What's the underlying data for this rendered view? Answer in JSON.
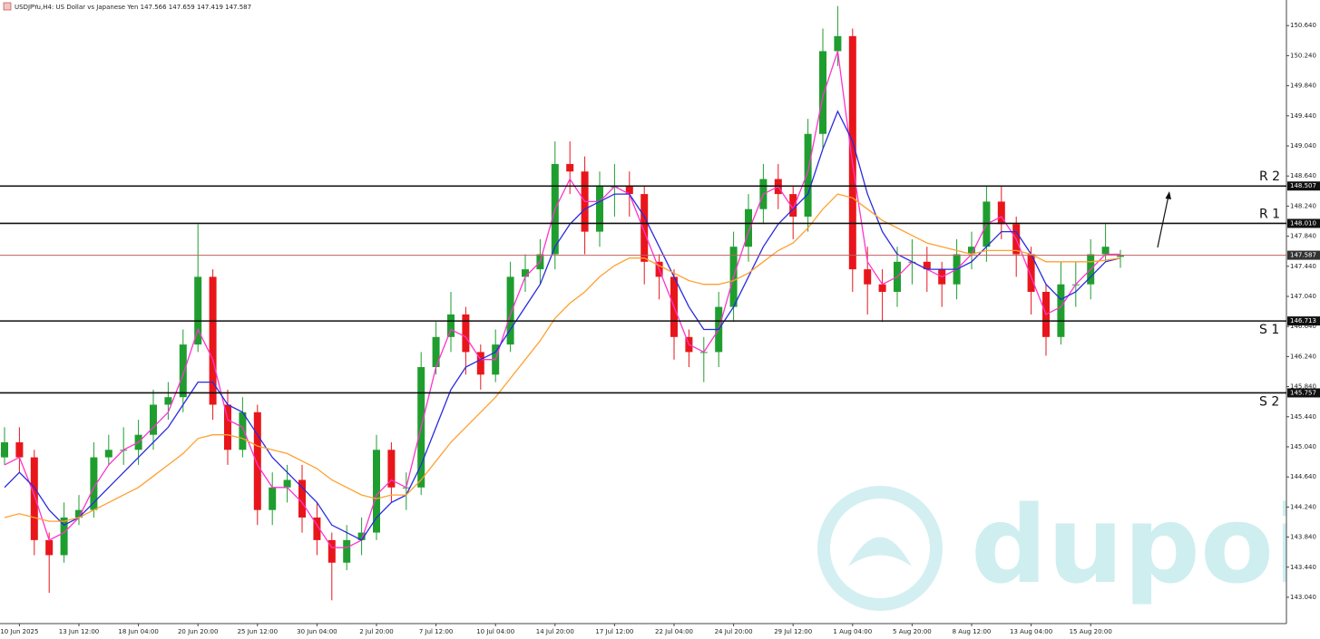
{
  "chart_data": {
    "type": "candlestick",
    "title": "USDJPYu,H4: US Dollar vs Japanese Yen 147.566 147.659 147.419 147.587",
    "watermark": "dupoin",
    "up_color": "#1f9e2f",
    "down_color": "#e8161b",
    "categories": [
      null,
      "10 Jun 2025",
      null,
      null,
      null,
      "13 Jun 12:00",
      null,
      null,
      null,
      "18 Jun 04:00",
      null,
      null,
      null,
      "20 Jun 20:00",
      null,
      null,
      null,
      "25 Jun 12:00",
      null,
      null,
      null,
      "30 Jun 04:00",
      null,
      null,
      null,
      "2 Jul 20:00",
      null,
      null,
      null,
      "7 Jul 12:00",
      null,
      null,
      null,
      "10 Jul 04:00",
      null,
      null,
      null,
      "14 Jul 20:00",
      null,
      null,
      null,
      "17 Jul 12:00",
      null,
      null,
      null,
      "22 Jul 04:00",
      null,
      null,
      null,
      "24 Jul 20:00",
      null,
      null,
      null,
      "29 Jul 12:00",
      null,
      null,
      null,
      "1 Aug 04:00",
      null,
      null,
      null,
      "5 Aug 20:00",
      null,
      null,
      null,
      "8 Aug 12:00",
      null,
      null,
      null,
      "13 Aug 04:00",
      null,
      null,
      null,
      "15 Aug 20:00",
      null,
      null
    ],
    "open": [
      144.9,
      145.1,
      144.9,
      143.8,
      143.6,
      144.1,
      144.2,
      144.9,
      145.0,
      145.0,
      145.2,
      145.6,
      145.7,
      146.4,
      147.3,
      145.6,
      145.0,
      145.5,
      144.2,
      144.5,
      144.6,
      144.1,
      143.8,
      143.5,
      143.8,
      143.9,
      145.0,
      144.5,
      144.5,
      146.1,
      146.5,
      146.8,
      146.3,
      146.0,
      146.4,
      147.3,
      147.4,
      147.6,
      148.8,
      148.7,
      147.9,
      148.5,
      148.5,
      148.4,
      147.5,
      147.3,
      146.5,
      146.3,
      146.3,
      146.9,
      147.7,
      148.2,
      148.6,
      148.4,
      148.1,
      149.2,
      150.3,
      150.5,
      147.4,
      147.2,
      147.1,
      147.5,
      147.5,
      147.4,
      147.2,
      147.6,
      147.7,
      148.3,
      148.0,
      147.6,
      147.1,
      146.5,
      147.2,
      147.2,
      147.6,
      147.566
    ],
    "high": [
      145.3,
      145.3,
      145.0,
      143.9,
      144.3,
      144.4,
      145.1,
      145.2,
      145.3,
      145.4,
      145.8,
      145.9,
      146.6,
      148.0,
      147.4,
      145.8,
      145.7,
      145.6,
      144.7,
      144.8,
      144.8,
      144.3,
      143.9,
      144.0,
      144.1,
      145.2,
      145.1,
      144.7,
      146.3,
      146.7,
      147.1,
      146.9,
      146.4,
      146.6,
      147.5,
      147.6,
      147.8,
      149.1,
      149.1,
      148.9,
      148.7,
      148.8,
      148.7,
      148.5,
      147.6,
      147.4,
      146.6,
      146.5,
      147.1,
      147.9,
      148.4,
      148.8,
      148.8,
      148.5,
      149.4,
      150.6,
      150.9,
      150.6,
      147.7,
      147.4,
      147.7,
      147.8,
      147.7,
      147.5,
      147.8,
      147.9,
      148.5,
      148.5,
      148.1,
      147.7,
      147.2,
      147.5,
      147.5,
      147.8,
      148.0,
      147.659
    ],
    "low": [
      144.8,
      144.7,
      143.6,
      143.1,
      143.5,
      144.0,
      144.1,
      144.8,
      144.8,
      144.8,
      145.0,
      145.4,
      145.5,
      146.3,
      145.4,
      144.8,
      144.9,
      144.0,
      144.0,
      144.3,
      143.9,
      143.6,
      143.0,
      143.4,
      143.6,
      143.8,
      144.3,
      144.2,
      144.4,
      146.0,
      146.3,
      146.0,
      145.8,
      145.9,
      146.3,
      147.1,
      147.2,
      147.4,
      148.4,
      147.6,
      147.7,
      148.1,
      148.1,
      147.2,
      147.0,
      146.2,
      146.1,
      145.9,
      146.1,
      146.7,
      147.5,
      148.0,
      148.2,
      147.8,
      147.9,
      149.0,
      150.1,
      147.1,
      146.8,
      146.7,
      146.9,
      147.2,
      147.1,
      146.9,
      147.0,
      147.4,
      147.5,
      147.8,
      147.3,
      146.8,
      146.25,
      146.4,
      146.9,
      147.0,
      147.5,
      147.419
    ],
    "close": [
      145.1,
      144.9,
      143.8,
      143.6,
      144.1,
      144.2,
      144.9,
      145.0,
      145.0,
      145.2,
      145.6,
      145.7,
      146.4,
      147.3,
      145.6,
      145.0,
      145.5,
      144.2,
      144.5,
      144.6,
      144.1,
      143.8,
      143.5,
      143.8,
      143.9,
      145.0,
      144.5,
      144.5,
      146.1,
      146.5,
      146.8,
      146.3,
      146.0,
      146.4,
      147.3,
      147.4,
      147.6,
      148.8,
      148.7,
      147.9,
      148.5,
      148.5,
      148.4,
      147.5,
      147.3,
      146.5,
      146.3,
      146.3,
      146.9,
      147.7,
      148.2,
      148.6,
      148.4,
      148.1,
      149.2,
      150.3,
      150.5,
      147.4,
      147.2,
      147.1,
      147.5,
      147.5,
      147.4,
      147.2,
      147.6,
      147.7,
      148.3,
      148.0,
      147.6,
      147.1,
      146.5,
      147.2,
      147.2,
      147.6,
      147.7,
      147.587
    ],
    "moving_averages": [
      {
        "color": "#ff33cc",
        "values": [
          144.8,
          144.9,
          144.4,
          143.8,
          143.9,
          144.1,
          144.5,
          144.8,
          145.0,
          145.1,
          145.3,
          145.5,
          146.0,
          146.6,
          146.2,
          145.4,
          145.3,
          144.8,
          144.5,
          144.5,
          144.3,
          144.0,
          143.7,
          143.7,
          143.8,
          144.4,
          144.6,
          144.5,
          145.3,
          146.1,
          146.6,
          146.5,
          146.2,
          146.2,
          146.8,
          147.3,
          147.5,
          148.2,
          148.6,
          148.3,
          148.3,
          148.5,
          148.4,
          147.9,
          147.4,
          146.9,
          146.4,
          146.3,
          146.6,
          147.3,
          147.9,
          148.4,
          148.5,
          148.2,
          148.7,
          149.7,
          150.3,
          148.8,
          147.5,
          147.2,
          147.3,
          147.5,
          147.4,
          147.3,
          147.4,
          147.6,
          148.0,
          148.1,
          147.8,
          147.3,
          146.8,
          146.9,
          147.2,
          147.4,
          147.6,
          147.6
        ]
      },
      {
        "color": "#2a2ae0",
        "values": [
          144.5,
          144.7,
          144.5,
          144.2,
          144.0,
          144.1,
          144.3,
          144.5,
          144.7,
          144.9,
          145.1,
          145.3,
          145.6,
          145.9,
          145.9,
          145.6,
          145.5,
          145.2,
          144.9,
          144.7,
          144.5,
          144.3,
          144.0,
          143.9,
          143.8,
          144.1,
          144.3,
          144.4,
          144.8,
          145.3,
          145.8,
          146.1,
          146.2,
          146.3,
          146.6,
          146.9,
          147.2,
          147.7,
          148.0,
          148.2,
          148.3,
          148.4,
          148.4,
          148.1,
          147.7,
          147.3,
          146.9,
          146.6,
          146.6,
          146.9,
          147.3,
          147.7,
          148.0,
          148.2,
          148.4,
          149.0,
          149.5,
          149.1,
          148.4,
          147.9,
          147.6,
          147.5,
          147.4,
          147.4,
          147.4,
          147.5,
          147.7,
          147.9,
          147.9,
          147.6,
          147.2,
          147.0,
          147.1,
          147.3,
          147.5,
          147.55
        ]
      },
      {
        "color": "#ffa030",
        "values": [
          144.1,
          144.15,
          144.1,
          144.05,
          144.05,
          144.1,
          144.2,
          144.3,
          144.4,
          144.5,
          144.65,
          144.8,
          144.95,
          145.15,
          145.2,
          145.2,
          145.15,
          145.05,
          145.0,
          144.95,
          144.85,
          144.75,
          144.6,
          144.5,
          144.4,
          144.35,
          144.4,
          144.4,
          144.6,
          144.85,
          145.1,
          145.3,
          145.5,
          145.7,
          145.95,
          146.2,
          146.45,
          146.75,
          146.95,
          147.1,
          147.3,
          147.45,
          147.55,
          147.55,
          147.45,
          147.35,
          147.25,
          147.2,
          147.2,
          147.25,
          147.35,
          147.5,
          147.65,
          147.75,
          147.95,
          148.2,
          148.4,
          148.35,
          148.2,
          148.05,
          147.95,
          147.85,
          147.75,
          147.7,
          147.65,
          147.6,
          147.65,
          147.65,
          147.65,
          147.6,
          147.5,
          147.5,
          147.5,
          147.5,
          147.52,
          147.55
        ]
      }
    ],
    "levels": [
      {
        "name": "R 2",
        "value": 148.507,
        "label": "148.507"
      },
      {
        "name": "R 1",
        "value": 148.01,
        "label": "148.010"
      },
      {
        "name": "S 1",
        "value": 146.713,
        "label": "146.713"
      },
      {
        "name": "S 2",
        "value": 145.757,
        "label": "145.757"
      }
    ],
    "current_price": {
      "value": 147.587,
      "label": "147.587",
      "color": "#c06060"
    },
    "ylim": [
      142.69,
      150.98
    ],
    "yticks": [
      {
        "value": 150.64,
        "label": "150.640"
      },
      {
        "value": 150.24,
        "label": "150.240"
      },
      {
        "value": 149.84,
        "label": "149.840"
      },
      {
        "value": 149.44,
        "label": "149.440"
      },
      {
        "value": 149.04,
        "label": "149.040"
      },
      {
        "value": 148.64,
        "label": "148.640"
      },
      {
        "value": 148.24,
        "label": "148.240"
      },
      {
        "value": 147.84,
        "label": "147.840"
      },
      {
        "value": 147.44,
        "label": "147.440"
      },
      {
        "value": 147.04,
        "label": "147.040"
      },
      {
        "value": 146.64,
        "label": "146.640"
      },
      {
        "value": 146.24,
        "label": "146.240"
      },
      {
        "value": 145.84,
        "label": "145.840"
      },
      {
        "value": 145.44,
        "label": "145.440"
      },
      {
        "value": 145.04,
        "label": "145.040"
      },
      {
        "value": 144.64,
        "label": "144.640"
      },
      {
        "value": 144.24,
        "label": "144.240"
      },
      {
        "value": 143.84,
        "label": "143.840"
      },
      {
        "value": 143.44,
        "label": "143.440"
      },
      {
        "value": 143.04,
        "label": "143.040"
      }
    ]
  }
}
